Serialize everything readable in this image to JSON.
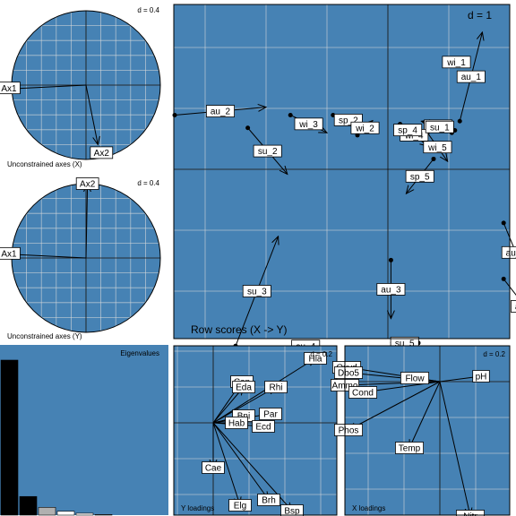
{
  "colors": {
    "panel_bg": "#4682b4",
    "grid": "#dcdcdc",
    "ink": "#000000",
    "label_bg": "#ffffff",
    "eig_black": "#000000",
    "eig_grey": "#b0b0b0",
    "eig_white": "#ffffff"
  },
  "chart_data": [
    {
      "id": "x_axes",
      "type": "scatter",
      "title": "Unconstrained axes (X)",
      "scale_label": "d = 0.4",
      "items": [
        {
          "label": "Ax1",
          "x": -1.0,
          "y": -0.05
        },
        {
          "label": "Ax2",
          "x": 0.16,
          "y": -0.8
        }
      ]
    },
    {
      "id": "y_axes",
      "type": "scatter",
      "title": "Unconstrained axes (Y)",
      "scale_label": "d = 0.4",
      "items": [
        {
          "label": "Ax1",
          "x": -1.0,
          "y": 0.05
        },
        {
          "label": "Ax2",
          "x": 0.02,
          "y": 1.0
        }
      ]
    },
    {
      "id": "row_scores",
      "type": "scatter",
      "title": "Row scores (X -> Y)",
      "scale_label": "d = 1",
      "items": [
        {
          "label": "wi_1",
          "x": 1.05,
          "y": 1.76,
          "ax": 1.2,
          "ay": 1.76
        },
        {
          "label": "au_1",
          "x": 1.18,
          "y": 0.79,
          "ax": 1.55,
          "ay": 2.25
        },
        {
          "label": "au_2",
          "x": -3.5,
          "y": 0.89,
          "ax": -2.0,
          "ay": 1.02
        },
        {
          "label": "su_2",
          "x": -2.3,
          "y": 0.68,
          "ax": -1.65,
          "ay": -0.08
        },
        {
          "label": "wi_3",
          "x": -1.6,
          "y": 0.89,
          "ax": -1.0,
          "ay": 0.6
        },
        {
          "label": "sp_2",
          "x": -0.9,
          "y": 0.89,
          "ax": -0.4,
          "ay": 0.73
        },
        {
          "label": "wi_2",
          "x": -0.5,
          "y": 0.56,
          "ax": -0.25,
          "ay": 0.8
        },
        {
          "label": "sp_1",
          "x": 1.1,
          "y": 0.64,
          "ax": 0.55,
          "ay": 0.79
        },
        {
          "label": "wi_4",
          "x": 0.2,
          "y": 0.74,
          "ax": 0.66,
          "ay": 0.38
        },
        {
          "label": "su_1",
          "x": 1.05,
          "y": 0.6,
          "ax": 0.65,
          "ay": 0.79
        },
        {
          "label": "wi_5",
          "x": 0.65,
          "y": 0.6,
          "ax": 0.98,
          "ay": 0.13
        },
        {
          "label": "sp_4",
          "x": 0.2,
          "y": 0.74,
          "ax": 0.45,
          "ay": 0.55
        },
        {
          "label": "sp_5",
          "x": 0.75,
          "y": 0.17,
          "ax": 0.3,
          "ay": -0.4
        },
        {
          "label": "su_3",
          "x": -2.5,
          "y": -2.9,
          "ax": -1.8,
          "ay": -1.1
        },
        {
          "label": "au_5",
          "x": 1.9,
          "y": -0.88,
          "ax": 2.3,
          "ay": -1.85
        },
        {
          "label": "au_4",
          "x": 1.9,
          "y": -1.8,
          "ax": 2.6,
          "ay": -2.7
        },
        {
          "label": "au_3",
          "x": 0.05,
          "y": -1.49,
          "ax": 0.05,
          "ay": -2.45
        },
        {
          "label": "su_4",
          "x": -1.5,
          "y": -2.85,
          "ax": -1.2,
          "ay": -2.95
        },
        {
          "label": "su_5",
          "x": 0.5,
          "y": -2.85,
          "ax": 0.05,
          "ay": -2.85
        }
      ]
    },
    {
      "id": "eigenvalues",
      "type": "bar",
      "title": "Eigenvalues",
      "values": [
        1.0,
        0.12,
        0.05,
        0.025,
        0.012,
        0.004
      ],
      "fills": [
        "black",
        "black",
        "grey",
        "white",
        "white",
        "white"
      ]
    },
    {
      "id": "y_loadings",
      "type": "scatter",
      "title": "Y loadings",
      "scale_label": "d = 0.2",
      "items": [
        {
          "label": "Hla",
          "x": 0.57,
          "y": 0.36
        },
        {
          "label": "Cen",
          "x": 0.16,
          "y": 0.23
        },
        {
          "label": "Eda",
          "x": 0.17,
          "y": 0.2
        },
        {
          "label": "Rhi",
          "x": 0.35,
          "y": 0.2
        },
        {
          "label": "Bni",
          "x": 0.17,
          "y": 0.04
        },
        {
          "label": "Par",
          "x": 0.32,
          "y": 0.05
        },
        {
          "label": "Hab",
          "x": 0.13,
          "y": 0.0
        },
        {
          "label": "Ecd",
          "x": 0.28,
          "y": -0.02
        },
        {
          "label": "Cae",
          "x": 0.0,
          "y": -0.25
        },
        {
          "label": "Elg",
          "x": 0.15,
          "y": -0.46
        },
        {
          "label": "Brh",
          "x": 0.31,
          "y": -0.43
        },
        {
          "label": "Bsp",
          "x": 0.44,
          "y": -0.49
        }
      ]
    },
    {
      "id": "x_loadings",
      "type": "scatter",
      "title": "X loadings",
      "scale_label": "d = 0.2",
      "items": [
        {
          "label": "Oxyd",
          "x": -0.52,
          "y": 0.08
        },
        {
          "label": "Dbo5",
          "x": -0.51,
          "y": 0.05
        },
        {
          "label": "Flow",
          "x": -0.14,
          "y": 0.02
        },
        {
          "label": "pH",
          "x": 0.23,
          "y": 0.03
        },
        {
          "label": "Ammo",
          "x": -0.53,
          "y": -0.02
        },
        {
          "label": "Cond",
          "x": -0.43,
          "y": -0.06
        },
        {
          "label": "Phos",
          "x": -0.51,
          "y": -0.27
        },
        {
          "label": "Temp",
          "x": -0.17,
          "y": -0.37
        },
        {
          "label": "Nitr",
          "x": 0.17,
          "y": -0.75
        }
      ]
    }
  ]
}
